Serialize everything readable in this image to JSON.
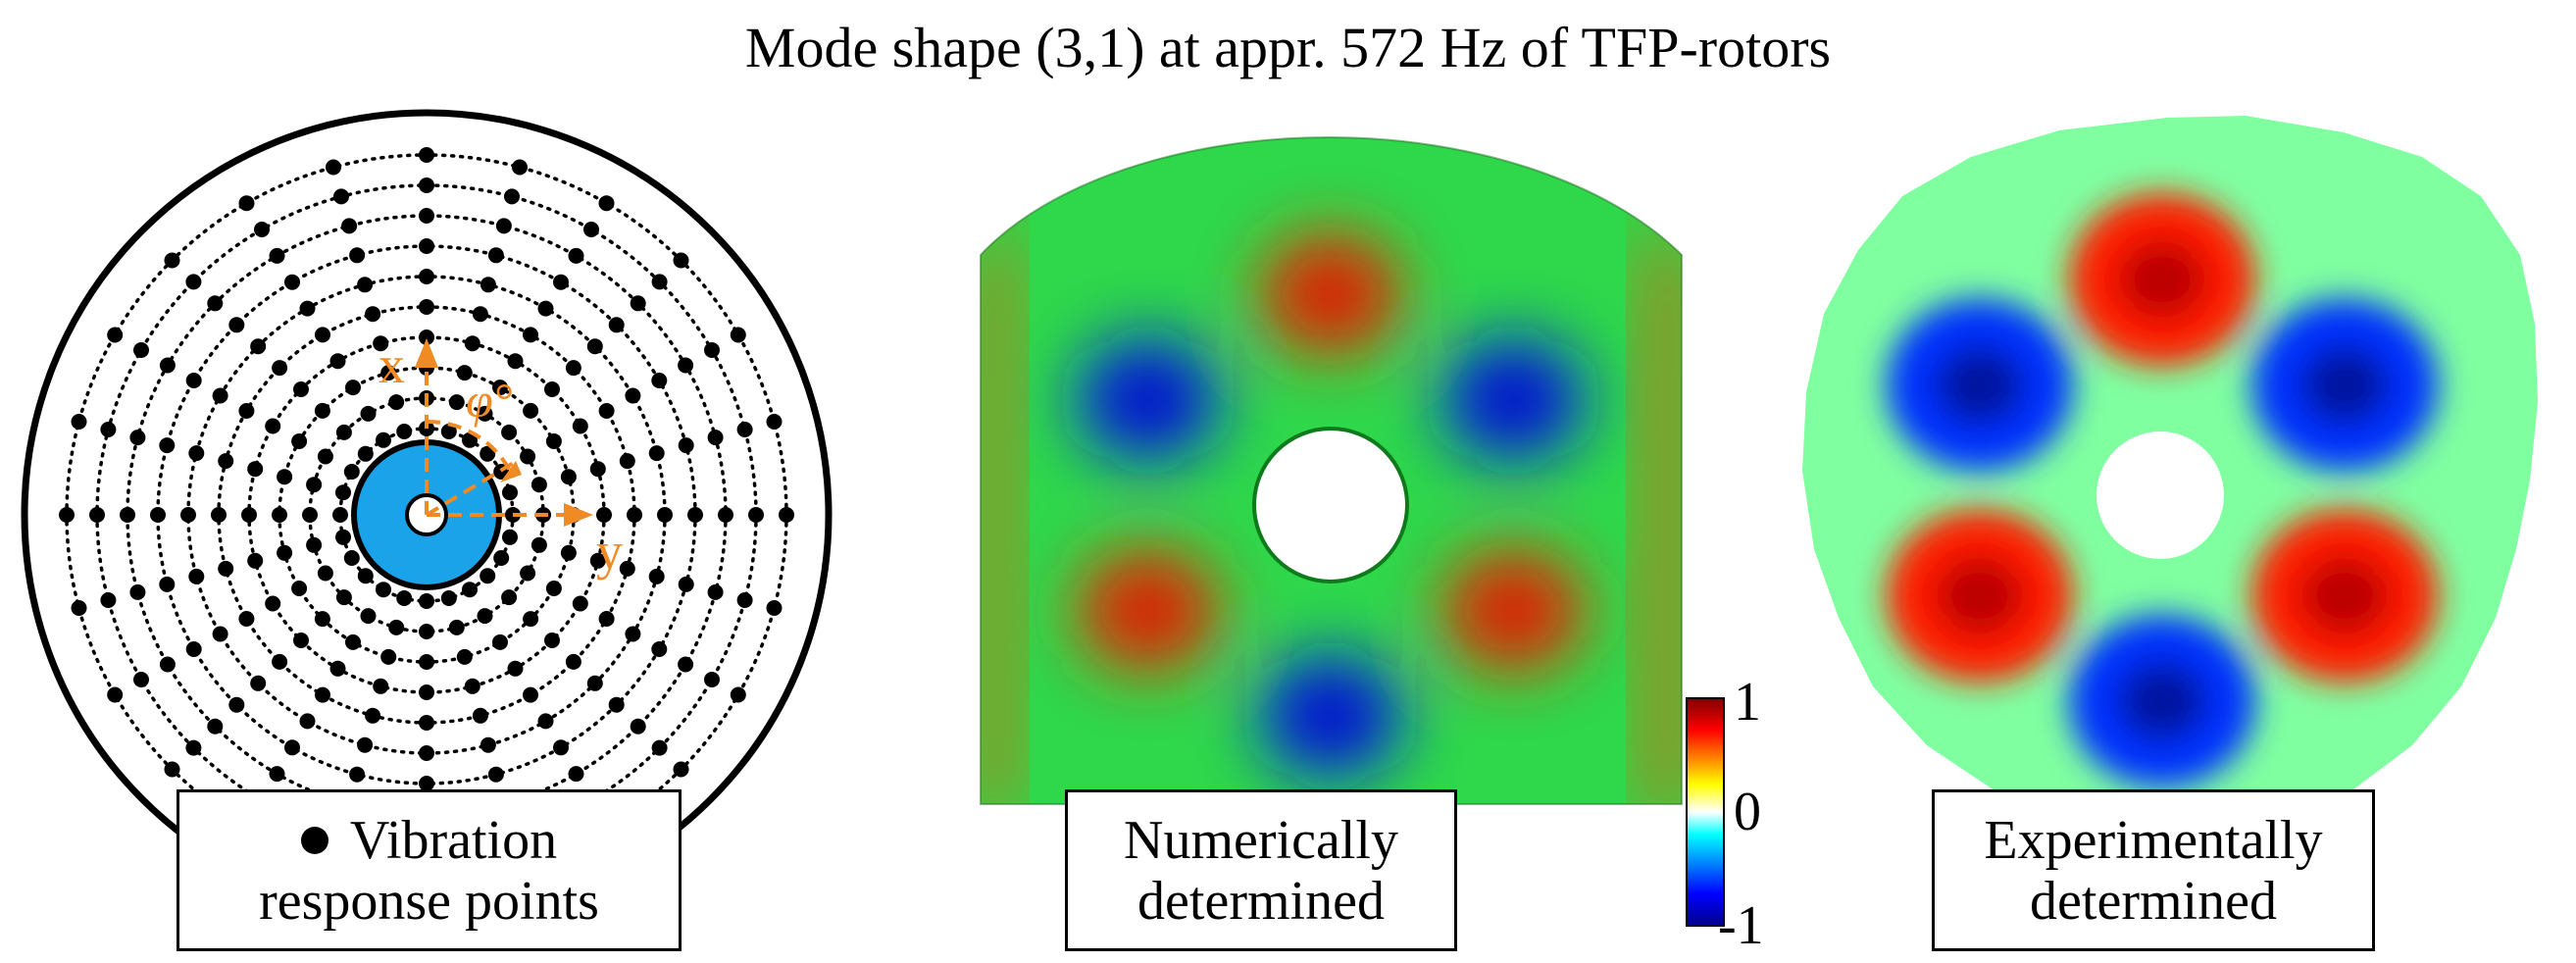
{
  "title": "Mode shape (3,1) at appr. 572 Hz of TFP-rotors",
  "legend": {
    "line1": "Vibration",
    "line2": "response points"
  },
  "diagram": {
    "x_axis_label": "x",
    "y_axis_label": "y",
    "angle_label": "φ°"
  },
  "panels": {
    "numerical": {
      "line1": "Numerically",
      "line2": "determined"
    },
    "experimental": {
      "line1": "Experimentally",
      "line2": "determined"
    }
  },
  "colorbar": {
    "max_label": "1",
    "mid_label": "0",
    "min_label": "-1",
    "stops": [
      "#00008f",
      "#0000ff",
      "#00ffff",
      "#ffffff",
      "#ffff00",
      "#ff0000",
      "#800000"
    ]
  },
  "measurement_grid": {
    "ring_count": 10,
    "points_per_ring": 24
  },
  "mode": {
    "nodal_diameters": 3,
    "nodal_circles": 1
  },
  "colors": {
    "orange": "#f08a24",
    "hub_blue": "#1aa3e8"
  }
}
